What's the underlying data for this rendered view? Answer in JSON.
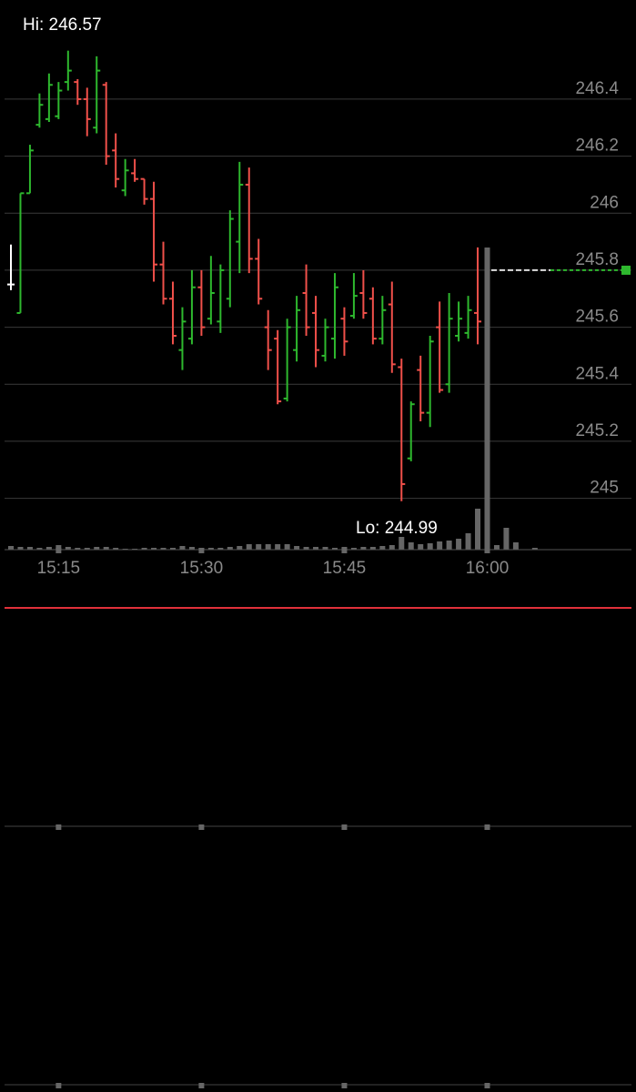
{
  "chart_data": {
    "type": "ohlc",
    "x": [
      "15:10",
      "15:11",
      "15:12",
      "15:13",
      "15:14",
      "15:15",
      "15:16",
      "15:17",
      "15:18",
      "15:19",
      "15:20",
      "15:21",
      "15:22",
      "15:23",
      "15:24",
      "15:25",
      "15:26",
      "15:27",
      "15:28",
      "15:29",
      "15:30",
      "15:31",
      "15:32",
      "15:33",
      "15:34",
      "15:35",
      "15:36",
      "15:37",
      "15:38",
      "15:39",
      "15:40",
      "15:41",
      "15:42",
      "15:43",
      "15:44",
      "15:45",
      "15:46",
      "15:47",
      "15:48",
      "15:49",
      "15:50",
      "15:51",
      "15:52",
      "15:53",
      "15:54",
      "15:55",
      "15:56",
      "15:57",
      "15:58",
      "15:59",
      "16:00",
      "16:01",
      "16:02",
      "16:03",
      "16:04",
      "16:05"
    ],
    "open": [
      245.75,
      245.65,
      246.07,
      246.31,
      246.33,
      246.34,
      246.46,
      246.46,
      246.4,
      246.3,
      246.45,
      246.22,
      246.08,
      246.14,
      246.12,
      246.05,
      245.82,
      245.7,
      245.52,
      245.56,
      245.74,
      245.63,
      245.62,
      245.7,
      245.9,
      246.1,
      245.84,
      245.6,
      245.56,
      245.35,
      245.52,
      245.72,
      245.65,
      245.5,
      245.56,
      245.63,
      245.64,
      245.72,
      245.7,
      245.56,
      245.68,
      245.46,
      245.14,
      245.45,
      245.3,
      245.6,
      245.4,
      245.57,
      245.58,
      245.65,
      null,
      null,
      null,
      null,
      null,
      null
    ],
    "high": [
      245.89,
      246.07,
      246.24,
      246.42,
      246.49,
      246.46,
      246.57,
      246.47,
      246.44,
      246.55,
      246.46,
      246.28,
      246.19,
      246.19,
      246.12,
      246.11,
      245.9,
      245.76,
      245.67,
      245.8,
      245.8,
      245.85,
      245.82,
      246.01,
      246.18,
      246.16,
      245.91,
      245.66,
      245.59,
      245.63,
      245.71,
      245.82,
      245.71,
      245.63,
      245.79,
      245.67,
      245.79,
      245.8,
      245.74,
      245.71,
      245.76,
      245.49,
      245.34,
      245.5,
      245.57,
      245.69,
      245.72,
      245.69,
      245.71,
      245.88,
      null,
      null,
      null,
      null,
      null,
      null
    ],
    "low": [
      245.73,
      245.65,
      246.07,
      246.3,
      246.32,
      246.33,
      246.43,
      246.38,
      246.27,
      246.28,
      246.17,
      246.09,
      246.06,
      246.11,
      246.03,
      245.76,
      245.68,
      245.54,
      245.45,
      245.54,
      245.57,
      245.61,
      245.58,
      245.67,
      245.79,
      245.79,
      245.68,
      245.45,
      245.33,
      245.34,
      245.48,
      245.57,
      245.46,
      245.48,
      245.49,
      245.5,
      245.63,
      245.63,
      245.54,
      245.54,
      245.44,
      244.99,
      245.13,
      245.27,
      245.25,
      245.37,
      245.37,
      245.55,
      245.56,
      245.54,
      null,
      null,
      null,
      null,
      null,
      null
    ],
    "close": [
      245.75,
      246.07,
      246.22,
      246.38,
      246.45,
      246.43,
      246.5,
      246.4,
      246.33,
      246.5,
      246.2,
      246.12,
      246.15,
      246.12,
      246.05,
      245.82,
      245.7,
      245.57,
      245.62,
      245.74,
      245.6,
      245.72,
      245.8,
      245.98,
      246.1,
      245.84,
      245.7,
      245.52,
      245.34,
      245.6,
      245.66,
      245.6,
      245.52,
      245.6,
      245.74,
      245.55,
      245.71,
      245.65,
      245.56,
      245.66,
      245.47,
      245.05,
      245.33,
      245.3,
      245.55,
      245.38,
      245.63,
      245.63,
      245.66,
      245.62,
      null,
      null,
      null,
      null,
      null,
      null
    ],
    "volume": [
      4,
      3,
      3,
      2,
      3,
      5,
      3,
      2,
      2,
      3,
      3,
      2,
      1,
      1,
      2,
      2,
      2,
      2,
      4,
      3,
      2,
      2,
      2,
      3,
      4,
      6,
      6,
      6,
      6,
      6,
      4,
      3,
      3,
      3,
      2,
      3,
      2,
      3,
      3,
      4,
      5,
      14,
      8,
      6,
      7,
      9,
      10,
      12,
      18,
      45,
      332,
      5,
      24,
      8,
      0,
      2
    ],
    "vlim": [
      0,
      100
    ],
    "up_color": "#2eb82e",
    "down_color": "#f0504a",
    "flat_color": "#ffffff",
    "volume_color": "#666666",
    "ylim": [
      244.82,
      246.62
    ],
    "yticks": [
      245,
      245.2,
      245.4,
      245.6,
      245.8,
      246,
      246.2,
      246.4
    ],
    "xticks": [
      "15:15",
      "15:30",
      "15:45",
      "16:00"
    ],
    "grid": true,
    "last": 245.8,
    "last_color": "#2eb82e",
    "annotations": [
      "Hi: 246.57",
      "Lo: 244.99"
    ]
  }
}
